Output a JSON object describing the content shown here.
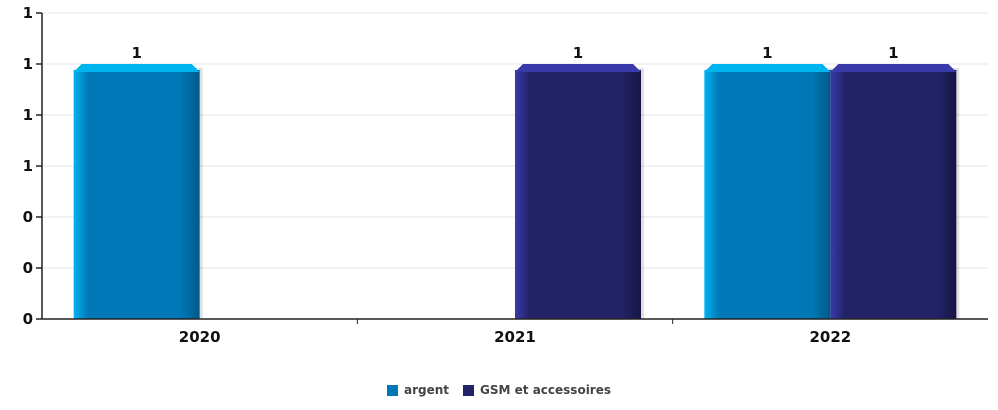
{
  "chart_data": {
    "type": "bar",
    "categories": [
      "2020",
      "2021",
      "2022"
    ],
    "series": [
      {
        "name": "argent",
        "values": [
          1,
          0,
          1
        ],
        "color": "#0077B6",
        "highlight": "#00B4F0",
        "shade": "#005A88"
      },
      {
        "name": "GSM et accessoires",
        "values": [
          0,
          1,
          1
        ],
        "color": "#222266",
        "highlight": "#3A3AAA",
        "shade": "#161644"
      }
    ],
    "y_tick_labels": [
      "0",
      "0",
      "0",
      "1",
      "1",
      "1",
      "1"
    ],
    "value_labels": [
      {
        "category": "2020",
        "series": "argent",
        "text": "1"
      },
      {
        "category": "2021",
        "series": "GSM et accessoires",
        "text": "1"
      },
      {
        "category": "2022",
        "series": "argent",
        "text": "1"
      },
      {
        "category": "2022",
        "series": "GSM et accessoires",
        "text": "1"
      }
    ],
    "ylim": [
      0,
      1.2
    ],
    "grid": true,
    "legend_position": "bottom-center"
  }
}
